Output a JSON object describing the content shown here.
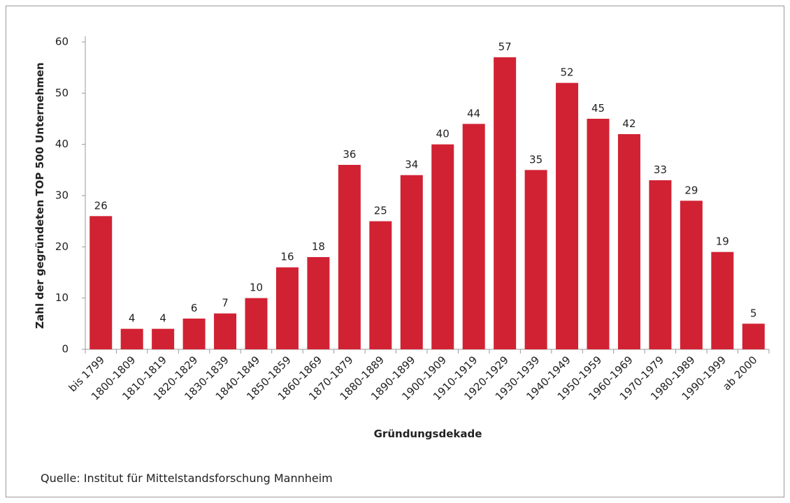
{
  "chart_data": {
    "type": "bar",
    "y_axis_label": "Zahl der gegründeten TOP 500 Unternehmen",
    "x_axis_label": "Gründungsdekade",
    "source": "Quelle: Institut für Mittelstandsforschung Mannheim",
    "categories": [
      "bis 1799",
      "1800-1809",
      "1810-1819",
      "1820-1829",
      "1830-1839",
      "1840-1849",
      "1850-1859",
      "1860-1869",
      "1870-1879",
      "1880-1889",
      "1890-1899",
      "1900-1909",
      "1910-1919",
      "1920-1929",
      "1930-1939",
      "1940-1949",
      "1950-1959",
      "1960-1969",
      "1970-1979",
      "1980-1989",
      "1990-1999",
      "ab 2000"
    ],
    "values": [
      26,
      4,
      4,
      6,
      7,
      10,
      16,
      18,
      36,
      25,
      34,
      40,
      44,
      57,
      35,
      52,
      45,
      42,
      33,
      29,
      19,
      5
    ],
    "color": "#d12233",
    "ylim": [
      0,
      60
    ],
    "yticks": [
      0,
      10,
      20,
      30,
      40,
      50,
      60
    ],
    "grid": false
  }
}
